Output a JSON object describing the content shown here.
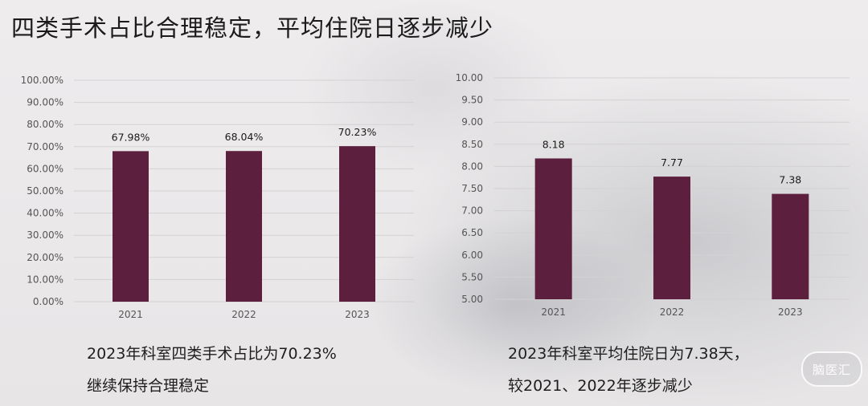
{
  "title": "四类手术占比合理稳定，平均住院日逐步减少",
  "colors": {
    "bar": "#5c1f3e",
    "grid": "#d3d1d2"
  },
  "left_caption": {
    "line1": "2023年科室四类手术占比为70.23%",
    "line2": "继续保持合理稳定"
  },
  "right_caption": {
    "line1": "2023年科室平均住院日为7.38天，",
    "line2": "较2021、2022年逐步减少"
  },
  "logo": {
    "text": "脑医汇"
  },
  "chart_data": [
    {
      "type": "bar",
      "title": "",
      "categories": [
        "2021",
        "2022",
        "2023"
      ],
      "values": [
        67.98,
        68.04,
        70.23
      ],
      "data_labels": [
        "67.98%",
        "68.04%",
        "70.23%"
      ],
      "ylim": [
        0,
        100
      ],
      "yticks": [
        "0.00%",
        "10.00%",
        "20.00%",
        "30.00%",
        "40.00%",
        "50.00%",
        "60.00%",
        "70.00%",
        "80.00%",
        "90.00%",
        "100.00%"
      ],
      "grid": true
    },
    {
      "type": "bar",
      "title": "",
      "categories": [
        "2021",
        "2022",
        "2023"
      ],
      "values": [
        8.18,
        7.77,
        7.38
      ],
      "data_labels": [
        "8.18",
        "7.77",
        "7.38"
      ],
      "ylim": [
        5,
        10
      ],
      "yticks": [
        "5.00",
        "5.50",
        "6.00",
        "6.50",
        "7.00",
        "7.50",
        "8.00",
        "8.50",
        "9.00",
        "9.50",
        "10.00"
      ],
      "grid": true
    }
  ]
}
